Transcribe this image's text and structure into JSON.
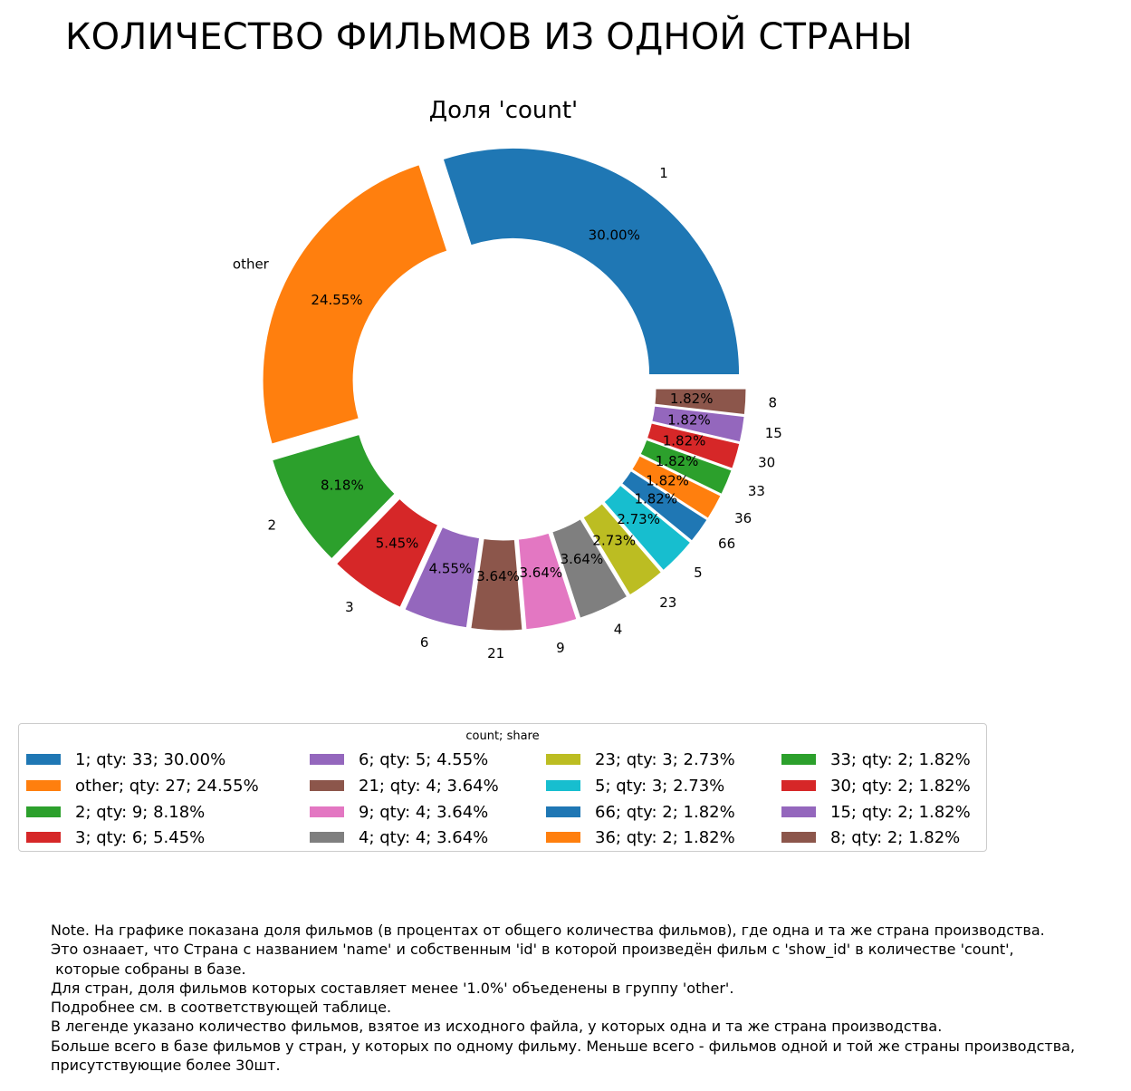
{
  "figure_title": "КОЛИЧЕСТВО ФИЛЬМОВ ИЗ ОДНОЙ СТРАНЫ",
  "chart_data": {
    "type": "pie",
    "title": "Доля 'count'",
    "donut": true,
    "labels": [
      "1",
      "other",
      "2",
      "3",
      "6",
      "21",
      "9",
      "4",
      "23",
      "5",
      "66",
      "36",
      "33",
      "30",
      "15",
      "8"
    ],
    "values": [
      33,
      27,
      9,
      6,
      5,
      4,
      4,
      4,
      3,
      3,
      2,
      2,
      2,
      2,
      2,
      2
    ],
    "percent_labels": [
      "30.00%",
      "24.55%",
      "8.18%",
      "5.45%",
      "4.55%",
      "3.64%",
      "3.64%",
      "3.64%",
      "2.73%",
      "2.73%",
      "1.82%",
      "1.82%",
      "1.82%",
      "1.82%",
      "1.82%",
      "1.82%"
    ],
    "colors": [
      "#1f77b4",
      "#ff7f0e",
      "#2ca02c",
      "#d62728",
      "#9467bd",
      "#8c564b",
      "#e377c2",
      "#7f7f7f",
      "#bcbd22",
      "#17becf",
      "#1f77b4",
      "#ff7f0e",
      "#2ca02c",
      "#d62728",
      "#9467bd",
      "#8c564b"
    ],
    "legend_title": "count; share",
    "legend_placement": "below",
    "legend_entries": [
      "1; qty: 33; 30.00%",
      "other; qty: 27; 24.55%",
      "2; qty: 9; 8.18%",
      "3; qty: 6; 5.45%",
      "6; qty: 5; 4.55%",
      "21; qty: 4; 3.64%",
      "9; qty: 4; 3.64%",
      "4; qty: 4; 3.64%",
      "23; qty: 3; 2.73%",
      "5; qty: 3; 2.73%",
      "66; qty: 2; 1.82%",
      "36; qty: 2; 1.82%",
      "33; qty: 2; 1.82%",
      "30; qty: 2; 1.82%",
      "15; qty: 2; 1.82%",
      "8; qty: 2; 1.82%"
    ]
  },
  "note_lines": [
    "Note. На графике показана доля фильмов (в процентах от общего количества фильмов), где одна и та же страна производства.",
    "Это ознаает, что Страна с названием 'name' и собственным 'id' в которой произведён фильм с 'show_id' в количестве 'count',",
    " которые собраны в базе.",
    "Для стран, доля фильмов которых составляет менее '1.0%' объеденены в группу 'other'.",
    "Подробнее см. в соответствующей таблице.",
    "В легенде указано количество фильмов, взятое из исходного файла, у которых одна и та же страна производства.",
    "Больше всего в базе фильмов у стран, у которых по одному фильму. Меньше всего - фильмов одной и той же страны производства,",
    "присутствующие более 30шт."
  ]
}
